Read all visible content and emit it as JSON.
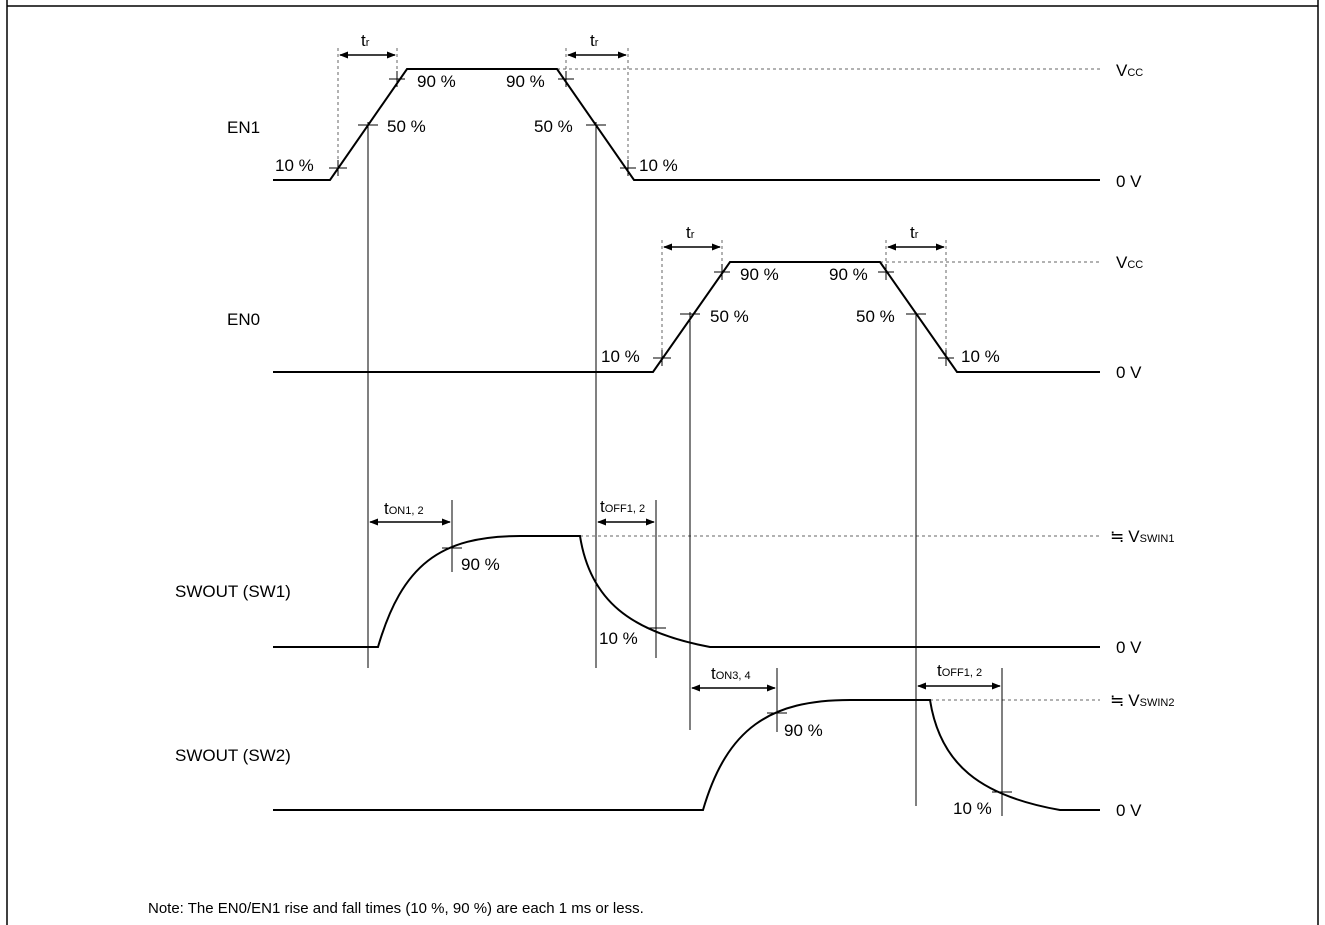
{
  "signals": {
    "en1": "EN1",
    "en0": "EN0",
    "sw1": "SWOUT (SW1)",
    "sw2": "SWOUT (SW2)"
  },
  "levels": {
    "vcc_main": "V",
    "vcc_sub": "CC",
    "zero": "0 V",
    "approx": "≒",
    "vswin1_main": "V",
    "vswin1_sub": "SWIN1",
    "vswin2_main": "V",
    "vswin2_sub": "SWIN2"
  },
  "percent": {
    "p10": "10 %",
    "p50": "50 %",
    "p90": "90 %"
  },
  "timing": {
    "t": "t",
    "r": "r",
    "on12": "ON1, 2",
    "off12": "OFF1, 2",
    "on34": "ON3, 4"
  },
  "note": "Note: The EN0/EN1 rise and fall times (10 %, 90 %) are each 1 ms or less."
}
